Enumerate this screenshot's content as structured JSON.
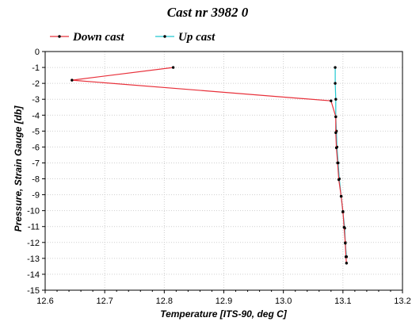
{
  "chart_data": {
    "type": "line",
    "title": "Cast nr 3982 0",
    "xlabel": "Temperature [ITS-90, deg C]",
    "ylabel": "Pressure, Strain Gauge [db]",
    "xlim": [
      12.6,
      13.2
    ],
    "ylim": [
      -15,
      0
    ],
    "xticks": [
      "12.6",
      "12.7",
      "12.8",
      "12.9",
      "13.0",
      "13.1",
      "13.2"
    ],
    "yticks": [
      "0",
      "-1",
      "-2",
      "-3",
      "-4",
      "-5",
      "-6",
      "-7",
      "-8",
      "-9",
      "-10",
      "-11",
      "-12",
      "-13",
      "-14",
      "-15"
    ],
    "legend_position": "top-left",
    "grid": true,
    "series": [
      {
        "name": "Down cast",
        "color": "#e8303a",
        "points": [
          [
            12.815,
            -1.0
          ],
          [
            12.645,
            -1.8
          ],
          [
            13.08,
            -3.1
          ],
          [
            13.088,
            -4.1
          ],
          [
            13.088,
            -5.1
          ],
          [
            13.089,
            -6.05
          ],
          [
            13.091,
            -7.0
          ],
          [
            13.093,
            -8.05
          ],
          [
            13.097,
            -9.1
          ],
          [
            13.1,
            -10.05
          ],
          [
            13.102,
            -11.05
          ],
          [
            13.104,
            -12.05
          ],
          [
            13.105,
            -12.9
          ],
          [
            13.106,
            -13.3
          ]
        ]
      },
      {
        "name": "Up cast",
        "color": "#20c8d0",
        "points": [
          [
            13.106,
            -12.9
          ],
          [
            13.104,
            -12.0
          ],
          [
            13.103,
            -11.1
          ],
          [
            13.1,
            -10.1
          ],
          [
            13.097,
            -9.1
          ],
          [
            13.094,
            -8.0
          ],
          [
            13.092,
            -7.0
          ],
          [
            13.09,
            -6.0
          ],
          [
            13.089,
            -5.0
          ],
          [
            13.088,
            -4.1
          ],
          [
            13.088,
            -3.0
          ],
          [
            13.087,
            -2.0
          ],
          [
            13.087,
            -1.0
          ]
        ]
      }
    ]
  }
}
